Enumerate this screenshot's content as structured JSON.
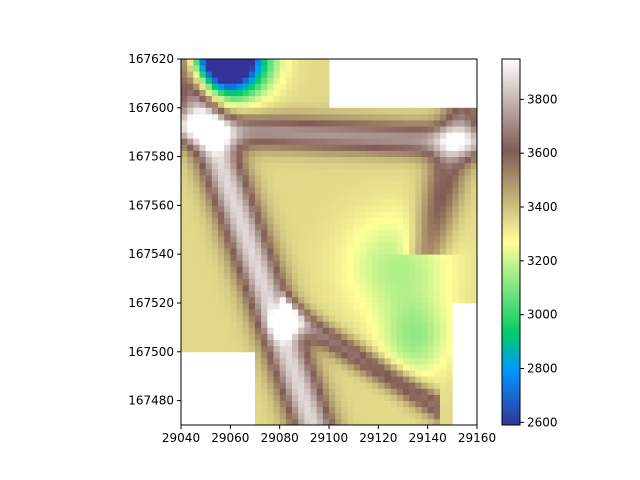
{
  "chart_data": {
    "type": "heatmap",
    "title": "",
    "xlabel": "",
    "ylabel": "",
    "xlim": [
      29040,
      29160
    ],
    "ylim": [
      167470,
      167620
    ],
    "x_ticks": [
      "29040",
      "29060",
      "29080",
      "29100",
      "29120",
      "29140",
      "29160"
    ],
    "y_ticks": [
      "167480",
      "167500",
      "167520",
      "167540",
      "167560",
      "167580",
      "167600",
      "167620"
    ],
    "colormap": "terrain",
    "colorbar": {
      "range": [
        2590,
        3950
      ],
      "ticks": [
        "2600",
        "2800",
        "3000",
        "3200",
        "3400",
        "3600",
        "3800"
      ]
    },
    "tiles": [
      {
        "x": [
          29040,
          29100
        ],
        "y": [
          167600,
          167620
        ],
        "note": "top-left tile"
      },
      {
        "x": [
          29040,
          29100
        ],
        "y": [
          167500,
          167600
        ]
      },
      {
        "x": [
          29100,
          29160
        ],
        "y": [
          167520,
          167600
        ]
      },
      {
        "x": [
          29070,
          29100
        ],
        "y": [
          167470,
          167500
        ]
      },
      {
        "x": [
          29100,
          29150
        ],
        "y": [
          167470,
          167520
        ]
      }
    ],
    "elevation_range": [
      2600,
      3950
    ],
    "grid": false
  },
  "colors": {
    "frame": "#000000",
    "background": "#ffffff"
  }
}
